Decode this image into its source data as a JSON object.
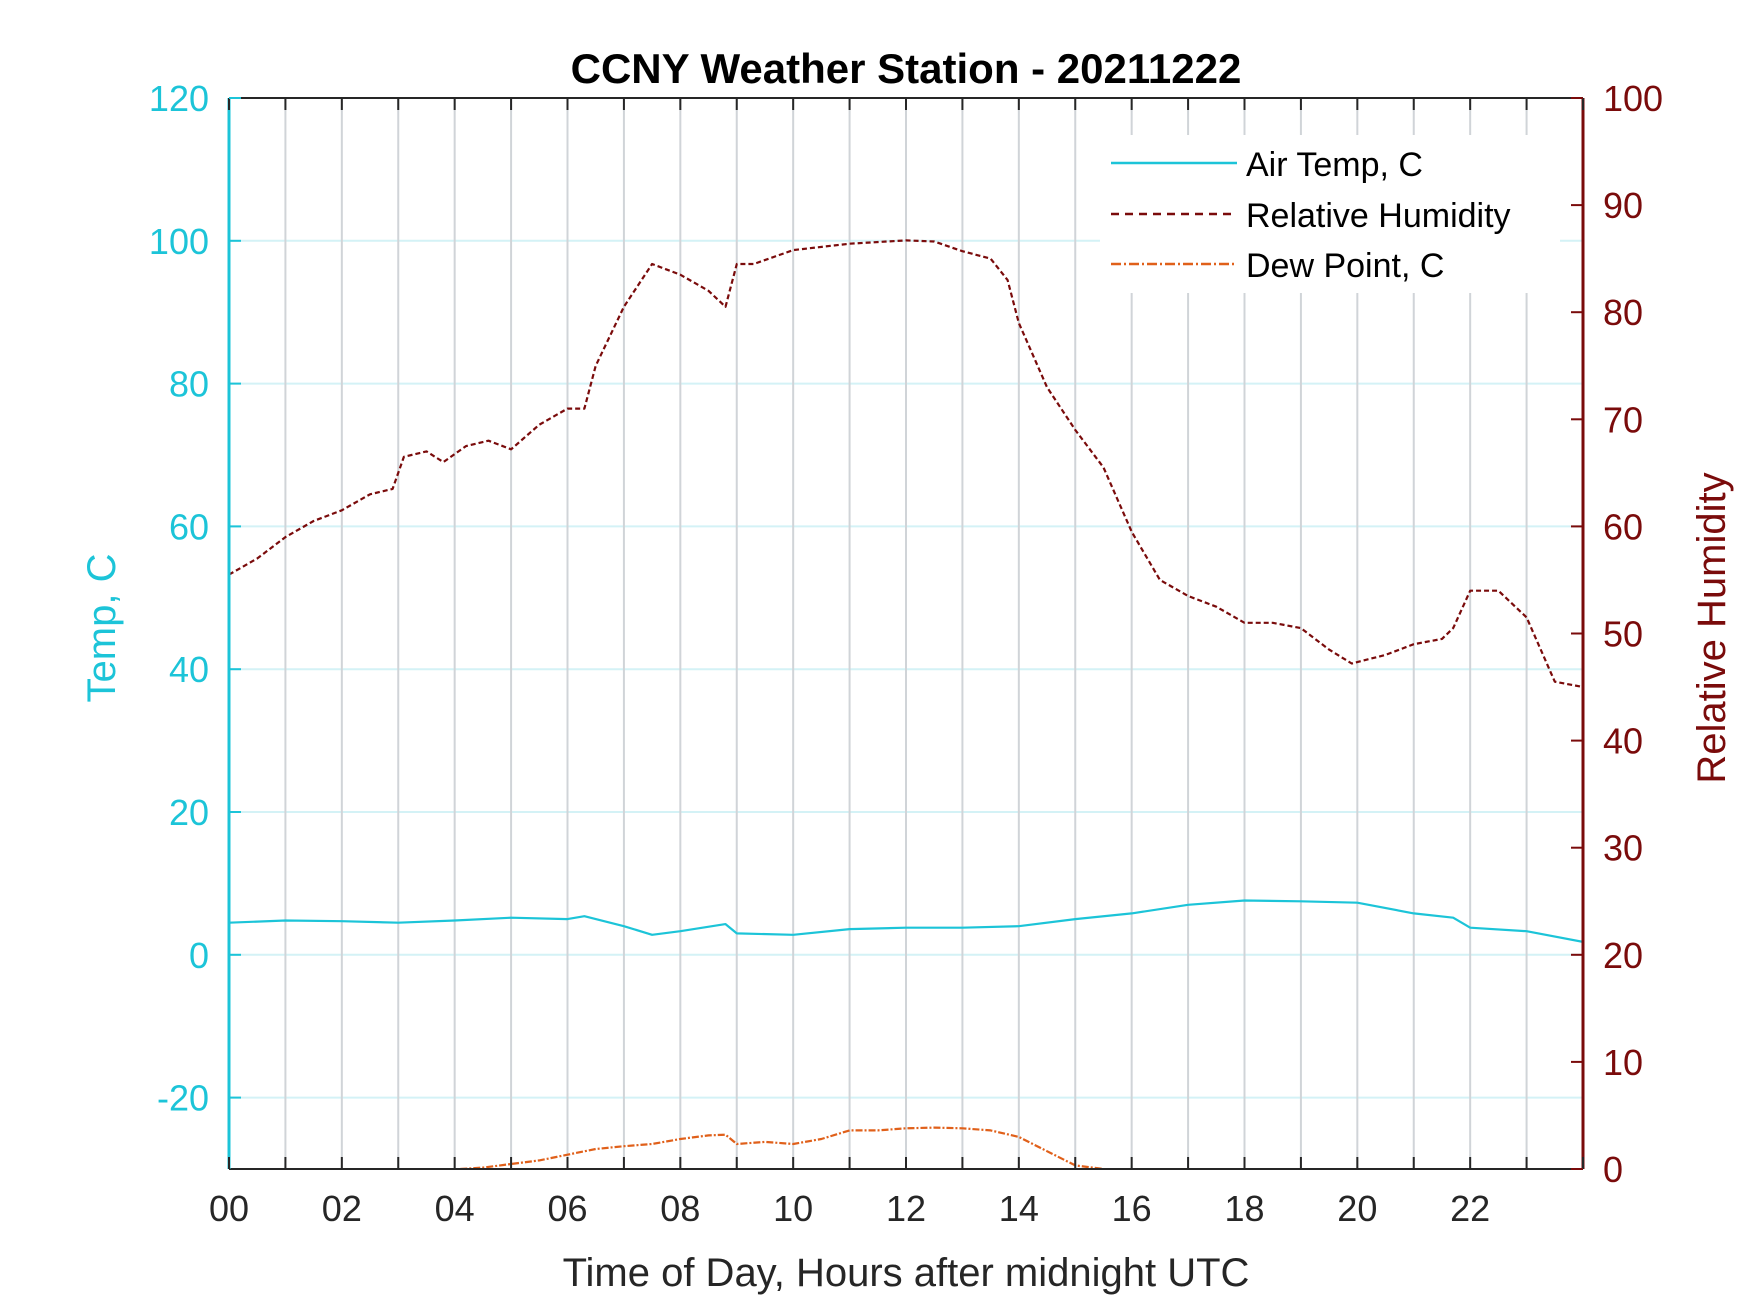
{
  "chart_data": {
    "type": "line",
    "title": "CCNY Weather Station - 20211222",
    "xlabel": "Time of Day, Hours after midnight UTC",
    "ylabel_left": "Temp, C",
    "ylabel_right": "Relative Humidity",
    "xlim": [
      0,
      24
    ],
    "ylim_left": [
      -30,
      120
    ],
    "ylim_right": [
      0,
      100
    ],
    "x_ticks": [
      0,
      2,
      4,
      6,
      8,
      10,
      12,
      14,
      16,
      18,
      20,
      22
    ],
    "x_tick_labels": [
      "00",
      "02",
      "04",
      "06",
      "08",
      "10",
      "12",
      "14",
      "16",
      "18",
      "20",
      "22"
    ],
    "y_left_ticks": [
      -20,
      0,
      20,
      40,
      60,
      80,
      100,
      120
    ],
    "y_left_tick_labels": [
      "-20",
      "0",
      "20",
      "40",
      "60",
      "80",
      "100",
      "120"
    ],
    "y_right_ticks": [
      0,
      10,
      20,
      30,
      40,
      50,
      60,
      70,
      80,
      90,
      100
    ],
    "y_right_tick_labels": [
      "0",
      "10",
      "20",
      "30",
      "40",
      "50",
      "60",
      "70",
      "80",
      "90",
      "100"
    ],
    "grid": true,
    "legend_position": "top-right",
    "colors": {
      "temp": "#1cc4d8",
      "rh": "#7a0b0b",
      "dew": "#e0601a",
      "grid_vertical": "#d0d4d8",
      "grid_horizontal": "#d4f2f6"
    },
    "series": [
      {
        "name": "Air Temp, C",
        "axis": "left",
        "style": "solid",
        "x": [
          0,
          1,
          2,
          3,
          4,
          5,
          6,
          6.3,
          7,
          7.5,
          8,
          8.8,
          9,
          10,
          11,
          12,
          13,
          14,
          15,
          16,
          17,
          18,
          19,
          20,
          21,
          21.7,
          22,
          23,
          24
        ],
        "y": [
          4.5,
          4.8,
          4.7,
          4.5,
          4.8,
          5.2,
          5.0,
          5.4,
          4.0,
          2.8,
          3.3,
          4.3,
          3.0,
          2.8,
          3.6,
          3.8,
          3.8,
          4.0,
          5.0,
          5.8,
          7.0,
          7.6,
          7.5,
          7.3,
          5.8,
          5.2,
          3.8,
          3.3,
          1.8
        ]
      },
      {
        "name": "Relative Humidity",
        "axis": "right",
        "style": "dashed",
        "x": [
          0,
          0.5,
          1,
          1.5,
          2,
          2.5,
          2.9,
          3.1,
          3.5,
          3.8,
          4.2,
          4.6,
          5.0,
          5.5,
          6.0,
          6.3,
          6.5,
          7.0,
          7.5,
          8.0,
          8.5,
          8.8,
          9.0,
          9.3,
          10,
          11,
          12,
          12.5,
          13,
          13.5,
          13.8,
          14,
          14.5,
          15,
          15.5,
          16,
          16.5,
          17,
          17.5,
          18,
          18.5,
          19,
          19.5,
          19.9,
          20.5,
          21,
          21.5,
          21.7,
          22,
          22.5,
          23,
          23.5,
          24
        ],
        "y": [
          55.5,
          57,
          59,
          60.5,
          61.5,
          63,
          63.5,
          66.5,
          67,
          66,
          67.5,
          68,
          67.2,
          69.5,
          71,
          71,
          75,
          80.5,
          84.5,
          83.5,
          82,
          80.5,
          84.5,
          84.5,
          85.8,
          86.4,
          86.7,
          86.6,
          85.7,
          85,
          83,
          79,
          73,
          69,
          65.5,
          59.5,
          55,
          53.5,
          52.5,
          51,
          51,
          50.5,
          48.5,
          47.2,
          48,
          49,
          49.5,
          50.5,
          54,
          54,
          51.5,
          45.5,
          45
        ]
      },
      {
        "name": "Dew Point, C",
        "axis": "left",
        "style": "dashdot",
        "x": [
          4.1,
          4.5,
          5,
          5.5,
          6,
          6.5,
          7,
          7.5,
          8,
          8.5,
          8.8,
          9,
          9.5,
          10,
          10.5,
          11,
          11.5,
          12,
          12.5,
          13,
          13.5,
          14,
          14.5,
          15,
          15.5
        ],
        "y": [
          -30,
          -29.8,
          -29.3,
          -28.8,
          -28,
          -27.2,
          -26.8,
          -26.5,
          -25.8,
          -25.3,
          -25.2,
          -26.5,
          -26.2,
          -26.5,
          -25.8,
          -24.6,
          -24.6,
          -24.3,
          -24.2,
          -24.3,
          -24.6,
          -25.5,
          -27.5,
          -29.5,
          -30
        ]
      }
    ]
  }
}
